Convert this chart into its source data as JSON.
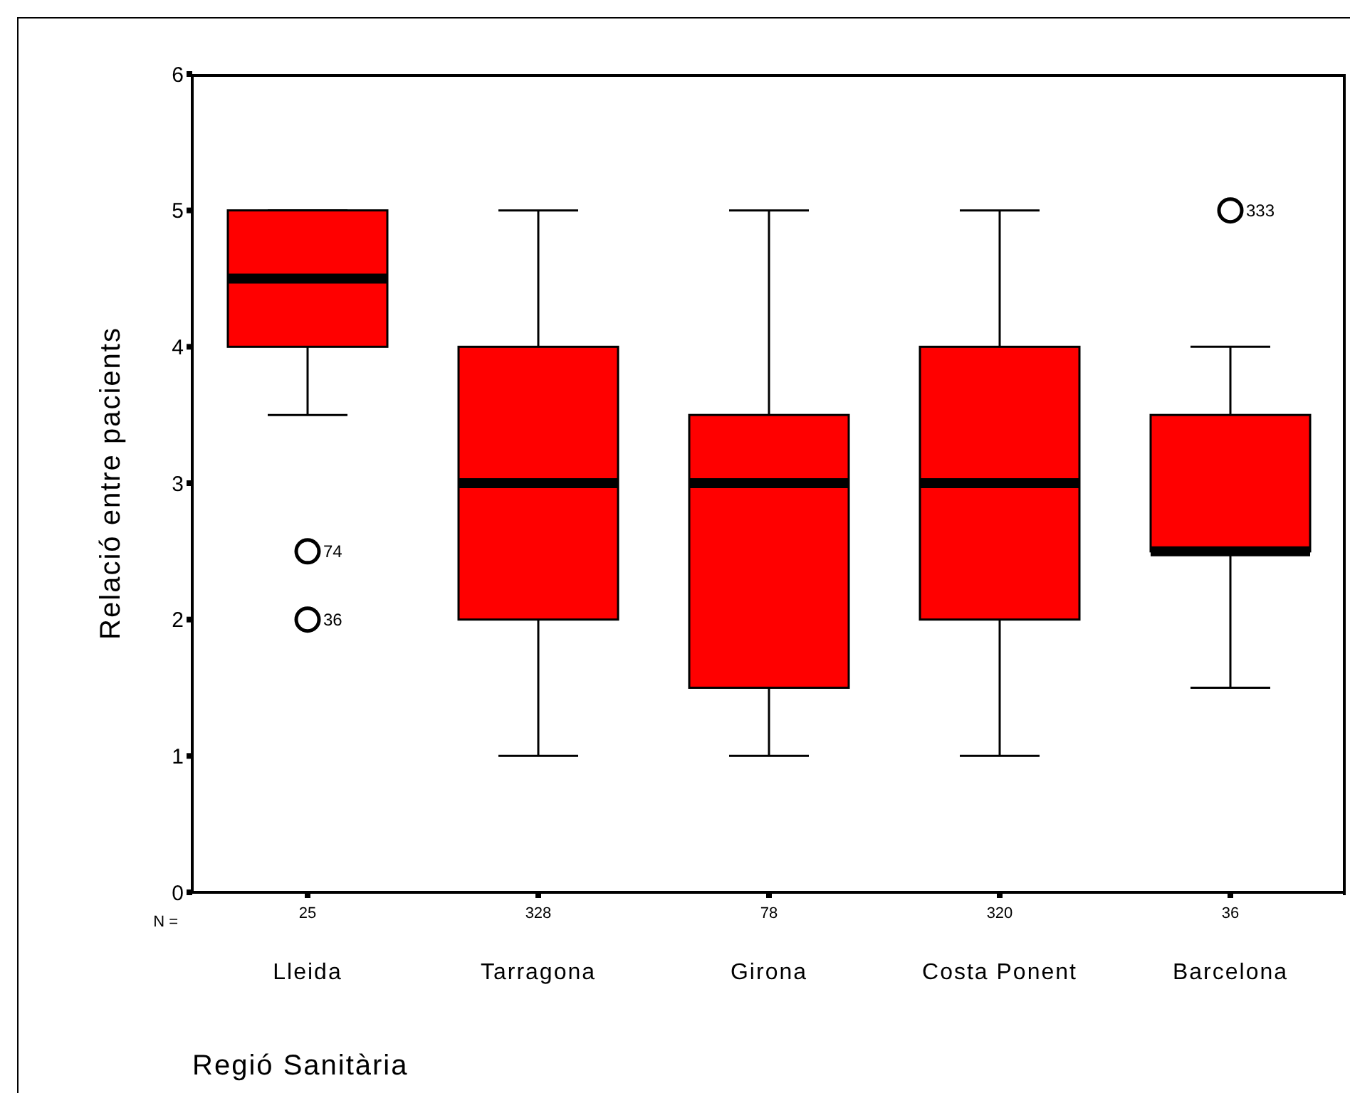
{
  "chart_data": {
    "type": "box",
    "xlabel": "Regió Sanitària",
    "ylabel": "Relació entre pacients",
    "categories": [
      "Lleida",
      "Tarragona",
      "Girona",
      "Costa Ponent",
      "Barcelona"
    ],
    "color": "#ff0000",
    "boxes": [
      {
        "low": 3.5,
        "q1": 4,
        "median": 4.5,
        "q3": 5,
        "high": 5,
        "outliers": [
          2.5,
          2
        ]
      },
      {
        "low": 1,
        "q1": 2,
        "median": 3,
        "q3": 4,
        "high": 5
      },
      {
        "low": 1,
        "q1": 1.5,
        "median": 3,
        "q3": 3.5,
        "high": 5
      },
      {
        "low": 1,
        "q1": 2,
        "median": 3,
        "q3": 4,
        "high": 5
      },
      {
        "low": 1.5,
        "q1": 2.5,
        "median": 2.5,
        "q3": 3.5,
        "high": 4,
        "outliers": [
          5
        ]
      }
    ],
    "ylim": [
      0,
      6
    ],
    "yticks": [
      0,
      1,
      2,
      3,
      4,
      5,
      6
    ],
    "grid": false,
    "annotations": [
      "N =",
      "25",
      "328",
      "78",
      "320",
      "36",
      "74",
      "36",
      "333"
    ]
  }
}
